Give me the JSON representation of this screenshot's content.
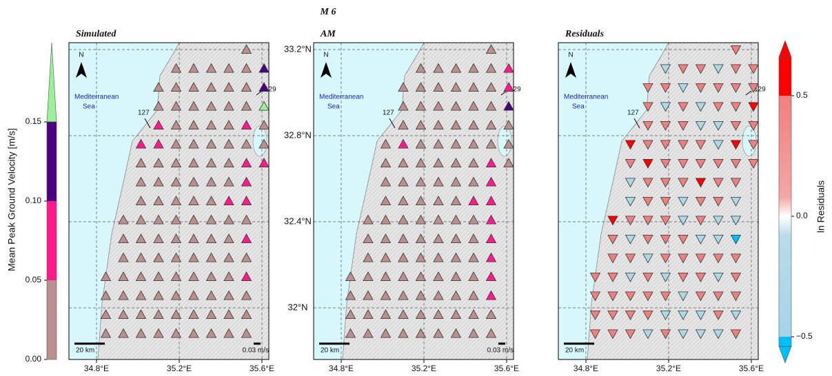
{
  "figure": {
    "title": "M 6",
    "lat_ticks": [
      {
        "value": 33.2,
        "label": "33.2°N"
      },
      {
        "value": 32.8,
        "label": "32.8°N"
      },
      {
        "value": 32.4,
        "label": "32.4°N"
      },
      {
        "value": 32,
        "label": "32°N"
      }
    ],
    "lon_ticks": [
      {
        "value": 34.8,
        "label": "34.8°E"
      },
      {
        "value": 35.2,
        "label": "35.2°E"
      },
      {
        "value": 35.6,
        "label": "35.6°E"
      }
    ],
    "sea_label": [
      "Mediterranean",
      "Sea"
    ],
    "north_label": "N",
    "scale_label": "20 km",
    "vector_label": "0.03 m/s",
    "station_labels": [
      "127",
      "129"
    ],
    "pgv_colorbar": {
      "label": "Mean Peak Ground Velocity [m/s]",
      "ylim": [
        0,
        0.2
      ],
      "yticks": [
        {
          "value": 0,
          "label": "0.00"
        },
        0.05,
        {
          "value": 0.1,
          "label": "0.10"
        },
        0.15
      ],
      "colors": [
        "#bc8f8f",
        "#ff1a8c",
        "#4b0082",
        "#98f098"
      ]
    },
    "residual_colorbar": {
      "label": "ln Residuals",
      "ylim": [
        -0.5,
        0.5
      ],
      "yticks": [
        {
          "value": -0.5,
          "label": "−0.5"
        },
        {
          "value": 0,
          "label": "0.0"
        },
        0.5
      ]
    },
    "panels": [
      {
        "title": "Simulated",
        "kind": "pgv",
        "values": [
          [
            null,
            null,
            null,
            null,
            null,
            null,
            null,
            null,
            null,
            0.02,
            null
          ],
          [
            null,
            null,
            null,
            null,
            null,
            0.02,
            0.02,
            0.02,
            0.02,
            0.02,
            0.12
          ],
          [
            null,
            null,
            null,
            null,
            0.02,
            0.02,
            0.02,
            0.02,
            0.02,
            0.02,
            0.12
          ],
          [
            null,
            null,
            null,
            null,
            0.02,
            0.02,
            0.02,
            0.02,
            0.02,
            0.02,
            0.17
          ],
          [
            null,
            null,
            null,
            null,
            0.07,
            0.02,
            0.02,
            0.02,
            0.02,
            0.07,
            0.02
          ],
          [
            null,
            null,
            null,
            0.07,
            0.07,
            0.02,
            0.02,
            0.02,
            0.02,
            0.02,
            0.02
          ],
          [
            null,
            null,
            null,
            0.02,
            0.02,
            0.02,
            0.02,
            0.02,
            0.02,
            0.07,
            0.07
          ],
          [
            null,
            null,
            null,
            0.02,
            0.02,
            0.02,
            0.02,
            0.02,
            0.02,
            0.07,
            null
          ],
          [
            null,
            null,
            null,
            0.02,
            0.02,
            0.02,
            0.02,
            0.02,
            0.07,
            0.07,
            null
          ],
          [
            null,
            null,
            0.02,
            0.02,
            0.02,
            0.02,
            0.02,
            0.02,
            0.02,
            0.02,
            null
          ],
          [
            null,
            null,
            0.02,
            0.02,
            0.02,
            0.02,
            0.02,
            0.02,
            0.02,
            0.07,
            null
          ],
          [
            null,
            null,
            0.02,
            0.02,
            0.02,
            0.02,
            0.02,
            0.02,
            0.02,
            0.02,
            null
          ],
          [
            null,
            0.02,
            0.02,
            0.02,
            0.02,
            0.02,
            0.02,
            0.02,
            0.02,
            0.07,
            null
          ],
          [
            null,
            0.02,
            0.02,
            0.02,
            0.02,
            0.02,
            0.02,
            0.02,
            0.02,
            0.02,
            null
          ],
          [
            null,
            0.02,
            0.02,
            0.02,
            0.02,
            0.02,
            0.02,
            0.02,
            0.02,
            0.02,
            null
          ],
          [
            null,
            0.02,
            0.02,
            0.02,
            0.02,
            0.02,
            0.02,
            0.02,
            0.02,
            0.02,
            null
          ]
        ]
      },
      {
        "title": "AM",
        "kind": "pgv",
        "values": [
          [
            null,
            null,
            null,
            null,
            null,
            null,
            null,
            null,
            null,
            0.02,
            null
          ],
          [
            null,
            null,
            null,
            null,
            null,
            0.02,
            0.02,
            0.02,
            0.02,
            0.02,
            0.07
          ],
          [
            null,
            null,
            null,
            null,
            0.02,
            0.02,
            0.02,
            0.02,
            0.02,
            0.02,
            0.07
          ],
          [
            null,
            null,
            null,
            null,
            0.02,
            0.02,
            0.02,
            0.02,
            0.02,
            0.02,
            0.12
          ],
          [
            null,
            null,
            null,
            null,
            0.02,
            0.02,
            0.02,
            0.02,
            0.02,
            0.02,
            0.02
          ],
          [
            null,
            null,
            null,
            0.02,
            0.07,
            0.02,
            0.02,
            0.02,
            0.02,
            0.02,
            0.02
          ],
          [
            null,
            null,
            null,
            0.02,
            0.02,
            0.02,
            0.02,
            0.02,
            0.02,
            0.07,
            0.02
          ],
          [
            null,
            null,
            null,
            0.02,
            0.02,
            0.02,
            0.02,
            0.02,
            0.02,
            0.07,
            null
          ],
          [
            null,
            null,
            null,
            0.02,
            0.02,
            0.02,
            0.02,
            0.02,
            0.07,
            0.07,
            null
          ],
          [
            null,
            null,
            0.02,
            0.02,
            0.02,
            0.02,
            0.02,
            0.02,
            0.02,
            0.07,
            null
          ],
          [
            null,
            null,
            0.02,
            0.02,
            0.02,
            0.02,
            0.02,
            0.02,
            0.02,
            0.07,
            null
          ],
          [
            null,
            null,
            0.02,
            0.02,
            0.02,
            0.02,
            0.02,
            0.02,
            0.02,
            0.07,
            null
          ],
          [
            null,
            0.02,
            0.02,
            0.02,
            0.02,
            0.02,
            0.02,
            0.02,
            0.02,
            0.07,
            null
          ],
          [
            null,
            0.02,
            0.02,
            0.02,
            0.02,
            0.02,
            0.02,
            0.02,
            0.02,
            0.07,
            null
          ],
          [
            null,
            0.02,
            0.02,
            0.02,
            0.02,
            0.02,
            0.02,
            0.02,
            0.02,
            0.02,
            null
          ],
          [
            null,
            0.02,
            0.02,
            0.02,
            0.02,
            0.02,
            0.02,
            0.02,
            0.02,
            0.02,
            null
          ]
        ]
      },
      {
        "title": "Residuals",
        "kind": "residual",
        "values": [
          [
            null,
            null,
            null,
            null,
            null,
            null,
            null,
            null,
            null,
            0.2,
            null
          ],
          [
            null,
            null,
            null,
            null,
            null,
            -0.2,
            0.2,
            0.2,
            -0.2,
            0.2,
            0.2
          ],
          [
            null,
            null,
            null,
            null,
            0.2,
            0.2,
            -0.2,
            0.2,
            0.2,
            0.2,
            0.2
          ],
          [
            null,
            null,
            null,
            null,
            0.2,
            -0.2,
            0.2,
            -0.2,
            0.2,
            0.2,
            0.6
          ],
          [
            null,
            null,
            null,
            null,
            0.2,
            0.2,
            0.2,
            -0.2,
            -0.2,
            0.2,
            0.2
          ],
          [
            null,
            null,
            null,
            0.6,
            0.2,
            0.2,
            0.2,
            0.2,
            -0.2,
            0.6,
            0.2
          ],
          [
            null,
            null,
            null,
            0.2,
            0.6,
            0.2,
            0.2,
            0.2,
            0.2,
            0.2,
            0.2
          ],
          [
            null,
            null,
            null,
            -0.2,
            0.2,
            0.2,
            0.2,
            0.6,
            0.2,
            0.2,
            null
          ],
          [
            null,
            null,
            null,
            -0.2,
            0.2,
            0.2,
            -0.2,
            0.2,
            0.2,
            -0.2,
            null
          ],
          [
            null,
            null,
            0.6,
            0.2,
            0.2,
            0.2,
            -0.2,
            0.2,
            -0.2,
            -0.3,
            null
          ],
          [
            null,
            null,
            0.2,
            -0.2,
            0.2,
            0.2,
            0.2,
            -0.2,
            -0.2,
            -0.6,
            null
          ],
          [
            null,
            null,
            0.2,
            0.2,
            -0.2,
            0.2,
            0.2,
            0.2,
            0.2,
            0.2,
            null
          ],
          [
            null,
            0.2,
            0.2,
            -0.2,
            0.2,
            -0.2,
            0.2,
            0.2,
            -0.2,
            0.2,
            null
          ],
          [
            null,
            0.2,
            0.2,
            0.2,
            0.2,
            0.2,
            -0.2,
            0.2,
            0.2,
            0.2,
            null
          ],
          [
            null,
            0.2,
            0.2,
            0.2,
            0.2,
            -0.2,
            -0.2,
            -0.2,
            0.2,
            -0.2,
            null
          ],
          [
            null,
            0.2,
            0.2,
            0.2,
            -0.2,
            0.2,
            -0.2,
            -0.2,
            -0.2,
            0.2,
            null
          ]
        ]
      }
    ]
  }
}
